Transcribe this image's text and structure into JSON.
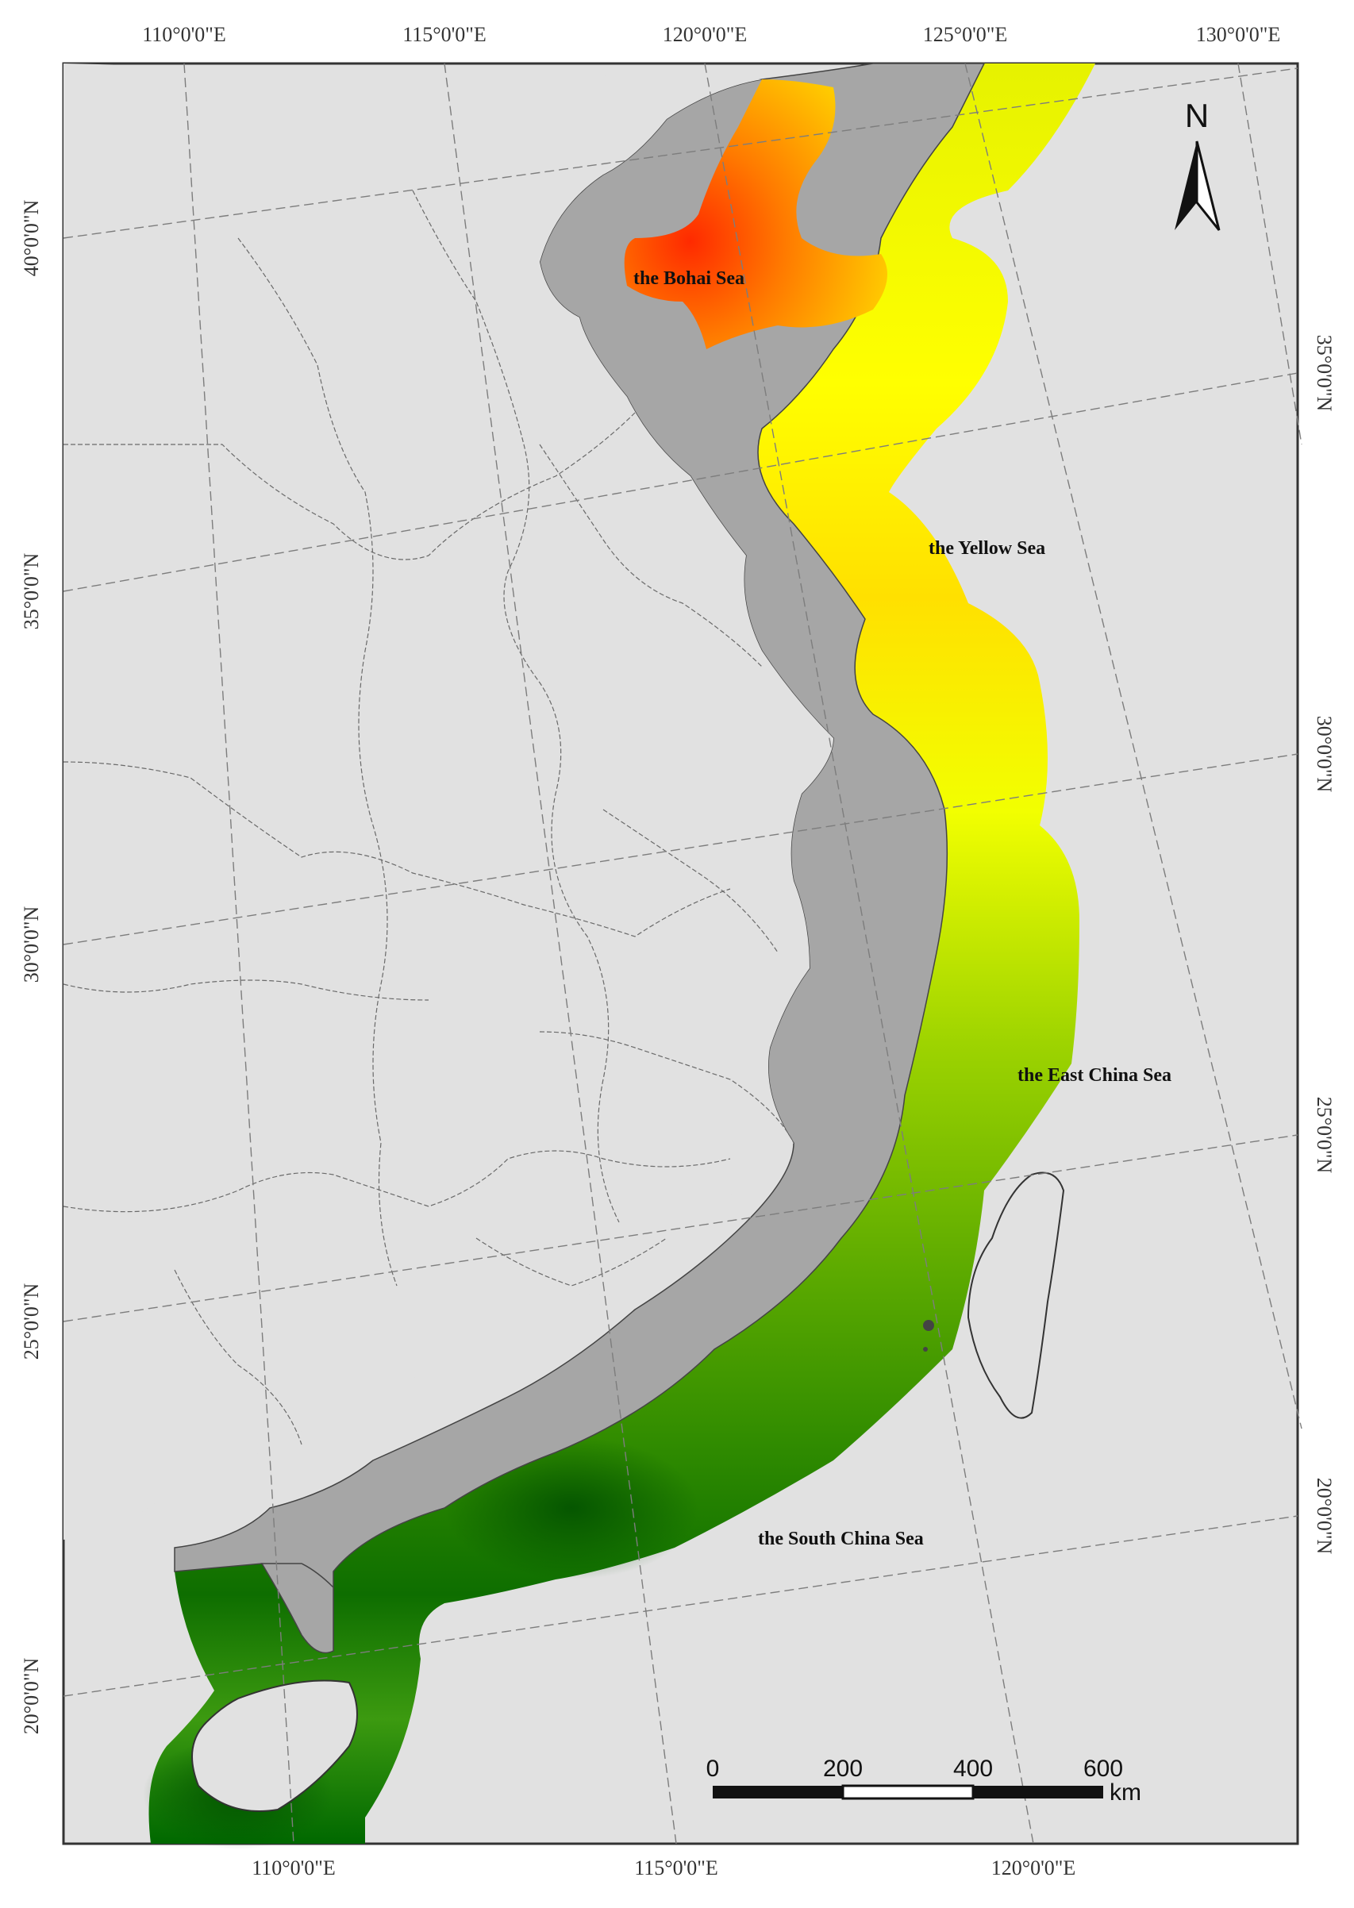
{
  "map": {
    "graticule_top": [
      "110°0'0\"E",
      "115°0'0\"E",
      "120°0'0\"E",
      "125°0'0\"E",
      "130°0'0\"E"
    ],
    "graticule_bottom": [
      "110°0'0\"E",
      "115°0'0\"E",
      "120°0'0\"E"
    ],
    "graticule_left": [
      "40°0'0\"N",
      "35°0'0\"N",
      "30°0'0\"N",
      "25°0'0\"N",
      "20°0'0\"N"
    ],
    "graticule_right": [
      "35°0'0\"N",
      "30°0'0\"N",
      "25°0'0\"N",
      "20°0'0\"N"
    ],
    "seas": {
      "bohai": "the Bohai Sea",
      "yellow": "the Yellow Sea",
      "east_china": "the East China Sea",
      "south_china": "the South China Sea"
    },
    "north_arrow": "N",
    "scale_bar": {
      "ticks": [
        "0",
        "200",
        "400",
        "600"
      ],
      "unit": "km"
    },
    "colors": {
      "land": "#e1e1e1",
      "coastal_province": "#a6a6a6",
      "high": "#ff3000",
      "mid": "#ffff00",
      "low": "#006a00"
    }
  }
}
